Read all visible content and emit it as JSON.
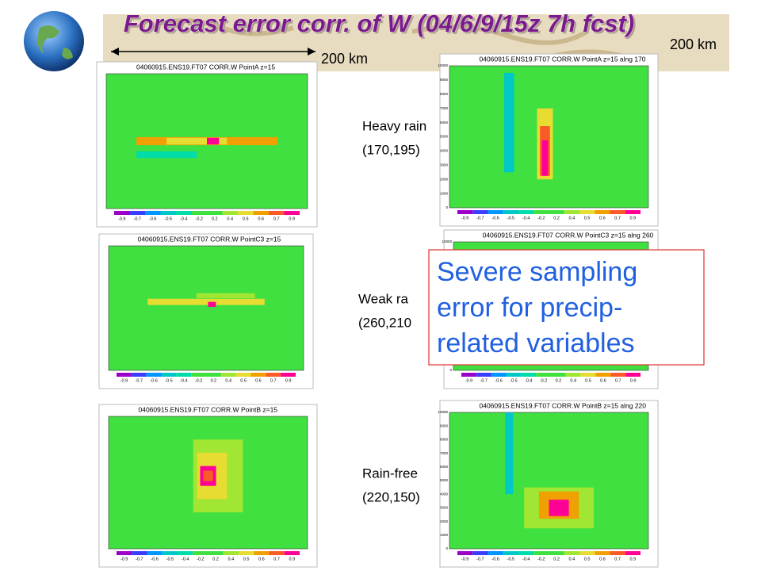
{
  "header": {
    "title": "Forecast error corr. of W (04/6/9/15z 7h fcst)",
    "scale_left": "200 km",
    "scale_right": "200 km"
  },
  "rows": [
    {
      "label": "Heavy rain",
      "point": "(170,195)"
    },
    {
      "label": "Weak ra",
      "point": "(260,210"
    },
    {
      "label": "Rain-free",
      "point": "(220,150)"
    }
  ],
  "panels": [
    {
      "title": "04060915.ENS19.FT07 CORR.W PointA z=15"
    },
    {
      "title": "04060915.ENS19.FT07 CORR.W PointA z=15 alng 170"
    },
    {
      "title": "04060915.ENS19.FT07 CORR.W PointC3 z=15"
    },
    {
      "title": "04060915.ENS19.FT07 CORR.W PointC3 z=15 alng 260"
    },
    {
      "title": "04060915.ENS19.FT07 CORR.W PointB z=15"
    },
    {
      "title": "04060915.ENS19.FT07 CORR.W PointB z=15 alng 220"
    }
  ],
  "colorbar_labels": [
    "-0.9",
    "-0.7",
    "-0.6",
    "-0.5",
    "-0.4",
    "-0.2",
    "0.2",
    "0.4",
    "0.5",
    "0.6",
    "0.7",
    "0.9"
  ],
  "height_ticks": [
    "0",
    "1000",
    "2000",
    "3000",
    "4000",
    "5000",
    "6000",
    "7000",
    "8000",
    "9000",
    "10000"
  ],
  "callout": [
    "Severe sampling",
    "error for precip-",
    "related variables"
  ]
}
